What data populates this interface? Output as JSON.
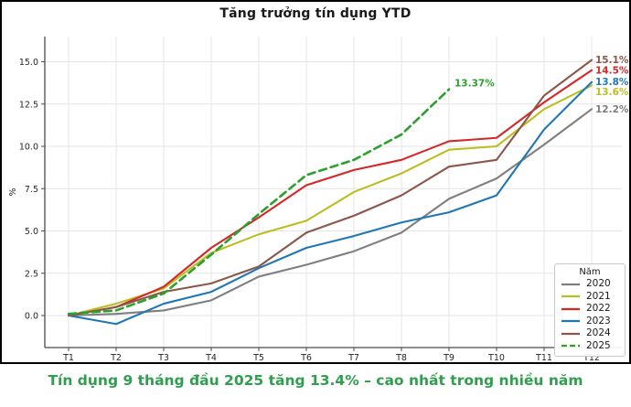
{
  "figure": {
    "title": "Tăng trưởng tín dụng YTD"
  },
  "caption": {
    "text": "Tín dụng 9 tháng đầu 2025 tăng 13.4% – cao nhất trong nhiều năm",
    "color": "#2f9e4e"
  },
  "chart_data": {
    "type": "line",
    "title": "Tăng trưởng tín dụng YTD",
    "xlabel": "",
    "ylabel": "%",
    "x_categories": [
      "T1",
      "T2",
      "T3",
      "T4",
      "T5",
      "T6",
      "T7",
      "T8",
      "T9",
      "T10",
      "T11",
      "T12"
    ],
    "y_tick_labels": [
      "0.0",
      "2.5",
      "5.0",
      "7.5",
      "10.0",
      "12.5",
      "15.0"
    ],
    "y_tick_values": [
      0.0,
      2.5,
      5.0,
      7.5,
      10.0,
      12.5,
      15.0
    ],
    "ylim": [
      -1.9,
      16.5
    ],
    "grid": true,
    "legend": {
      "title": "Năm",
      "position": "lower-right"
    },
    "annotation": {
      "text": "13.37%",
      "series": "2025",
      "color": "#2ca02c"
    },
    "series": [
      {
        "name": "2020",
        "color": "#7f7f7f",
        "dash": false,
        "values": [
          0.0,
          0.1,
          0.3,
          0.9,
          2.3,
          3.0,
          3.8,
          4.9,
          6.9,
          8.1,
          10.1,
          12.2
        ],
        "end_label": "12.2%"
      },
      {
        "name": "2021",
        "color": "#bcbd22",
        "dash": false,
        "values": [
          0.0,
          0.7,
          1.6,
          3.7,
          4.8,
          5.6,
          7.3,
          8.4,
          9.8,
          10.0,
          12.2,
          13.6
        ],
        "end_label": "13.6%"
      },
      {
        "name": "2022",
        "color": "#d62728",
        "dash": false,
        "values": [
          0.0,
          0.5,
          1.7,
          4.0,
          5.8,
          7.7,
          8.6,
          9.2,
          10.3,
          10.5,
          12.6,
          14.5
        ],
        "end_label": "14.5%"
      },
      {
        "name": "2023",
        "color": "#1f77b4",
        "dash": false,
        "values": [
          0.0,
          -0.5,
          0.7,
          1.4,
          2.8,
          4.0,
          4.7,
          5.5,
          6.1,
          7.1,
          11.0,
          13.8
        ],
        "end_label": "13.8%"
      },
      {
        "name": "2024",
        "color": "#8c564b",
        "dash": false,
        "values": [
          0.0,
          0.5,
          1.4,
          1.9,
          2.9,
          4.9,
          5.9,
          7.1,
          8.8,
          9.2,
          13.0,
          15.1
        ],
        "end_label": "15.1%"
      },
      {
        "name": "2025",
        "color": "#2ca02c",
        "dash": true,
        "values": [
          0.1,
          0.3,
          1.3,
          3.6,
          6.0,
          8.3,
          9.2,
          10.7,
          13.37
        ],
        "end_label": null
      }
    ]
  }
}
